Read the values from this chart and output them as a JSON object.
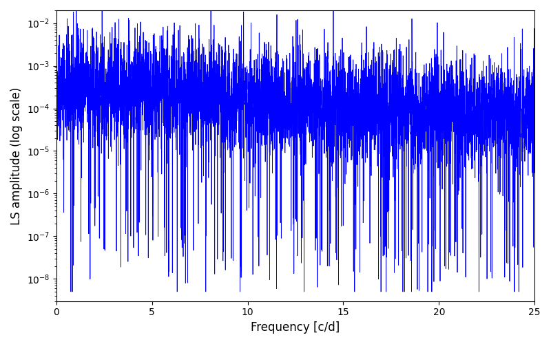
{
  "xlabel": "Frequency [c/d]",
  "ylabel": "LS amplitude (log scale)",
  "xlim": [
    0,
    25
  ],
  "ylim": [
    3e-09,
    0.02
  ],
  "xticks": [
    0,
    5,
    10,
    15,
    20,
    25
  ],
  "line_color": "#0000ff",
  "line_width": 0.6,
  "figsize": [
    8.0,
    5.0
  ],
  "dpi": 100,
  "bg_color": "#ffffff",
  "n_points": 5000,
  "seed": 42
}
